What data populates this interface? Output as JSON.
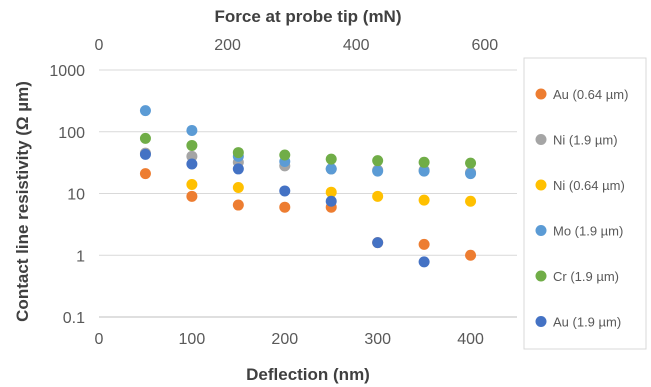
{
  "chart_data": {
    "type": "scatter",
    "title": "",
    "xlabel": "Deflection (nm)",
    "x2label": "Force at probe tip (mN)",
    "ylabel": "Contact line resistivity (Ω µm)",
    "xlim": [
      0,
      450
    ],
    "x2lim": [
      0,
      650
    ],
    "ylim": [
      0.1,
      1000
    ],
    "yscale": "log",
    "x_ticks": [
      0,
      100,
      200,
      300,
      400
    ],
    "x2_ticks": [
      0,
      200,
      400,
      600
    ],
    "y_ticks": [
      0.1,
      1,
      10,
      100,
      1000
    ],
    "y_tick_labels": [
      "0.1",
      "1",
      "10",
      "100",
      "1000"
    ],
    "grid": "horizontal",
    "legend_position": "right",
    "series": [
      {
        "name": "Au (0.64 µm)",
        "color": "#ed7d31",
        "x": [
          50,
          100,
          150,
          200,
          250,
          300,
          350,
          400
        ],
        "y": [
          21,
          9,
          6.5,
          6,
          6,
          1.6,
          1.5,
          1.0
        ]
      },
      {
        "name": "Ni (1.9 µm)",
        "color": "#a5a5a5",
        "x": [
          50,
          100,
          150,
          200,
          250,
          300,
          350,
          400
        ],
        "y": [
          45,
          40,
          32,
          28,
          25,
          24,
          24,
          22
        ]
      },
      {
        "name": "Ni (0.64 µm)",
        "color": "#ffc000",
        "x": [
          100,
          150,
          250,
          300,
          350,
          400
        ],
        "y": [
          14,
          12.5,
          10.5,
          9,
          7.8,
          7.5
        ]
      },
      {
        "name": "Mo (1.9 µm)",
        "color": "#5b9bd5",
        "x": [
          50,
          100,
          150,
          200,
          250,
          300,
          350,
          400
        ],
        "y": [
          220,
          105,
          40,
          33,
          25,
          23,
          23,
          21
        ]
      },
      {
        "name": "Cr (1.9 µm)",
        "color": "#70ad47",
        "x": [
          50,
          100,
          150,
          200,
          250,
          300,
          350,
          400
        ],
        "y": [
          78,
          60,
          46,
          42,
          36,
          34,
          32,
          31
        ]
      },
      {
        "name": "Au (1.9 µm)",
        "color": "#4472c4",
        "x": [
          50,
          100,
          150,
          200,
          250,
          300,
          350
        ],
        "y": [
          43,
          30,
          25,
          11,
          7.5,
          1.6,
          0.78
        ]
      }
    ]
  }
}
